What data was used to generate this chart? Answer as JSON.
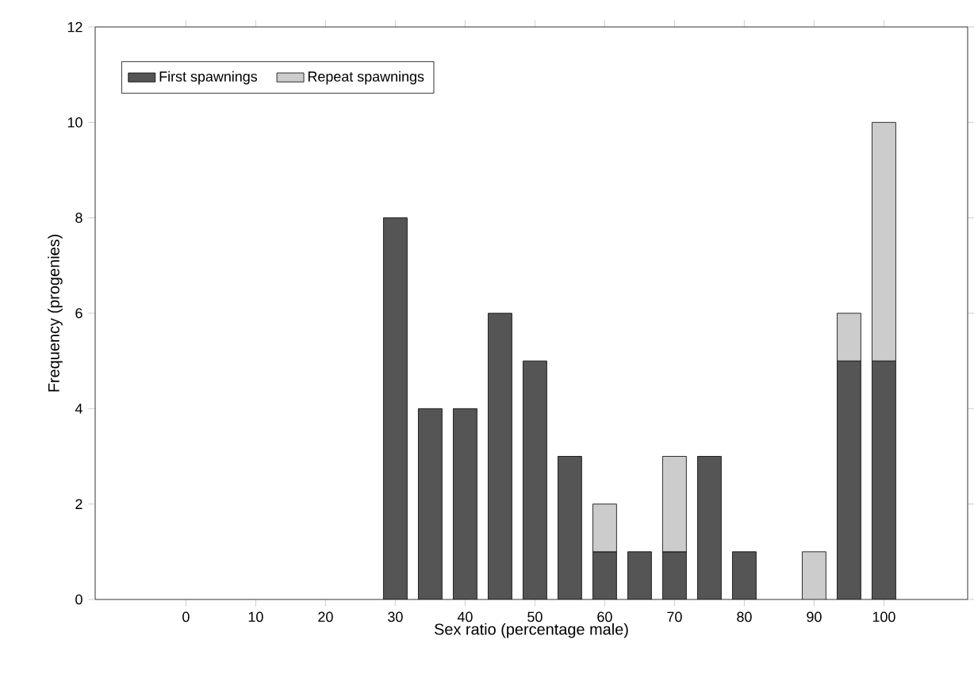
{
  "chart_data": {
    "type": "bar",
    "stacked": true,
    "xlabel": "Sex ratio (percentage male)",
    "ylabel": "Frequency (progenies)",
    "x": [
      30,
      35,
      40,
      45,
      50,
      55,
      60,
      65,
      70,
      75,
      80,
      90,
      95,
      100
    ],
    "series": [
      {
        "name": "First spawnings",
        "color": "#555555",
        "values": [
          8,
          4,
          4,
          6,
          5,
          3,
          1,
          1,
          1,
          3,
          1,
          0,
          5,
          5
        ]
      },
      {
        "name": "Repeat spawnings",
        "color": "#cccccc",
        "values": [
          0,
          0,
          0,
          0,
          0,
          0,
          1,
          0,
          2,
          0,
          0,
          1,
          1,
          5
        ]
      }
    ],
    "xlim": [
      -13,
      112
    ],
    "xticks": [
      0,
      10,
      20,
      30,
      40,
      50,
      60,
      70,
      80,
      90,
      100
    ],
    "ylim": [
      0,
      12
    ],
    "yticks": [
      0,
      2,
      4,
      6,
      8,
      10,
      12
    ],
    "legend": "top left",
    "grid": false
  }
}
